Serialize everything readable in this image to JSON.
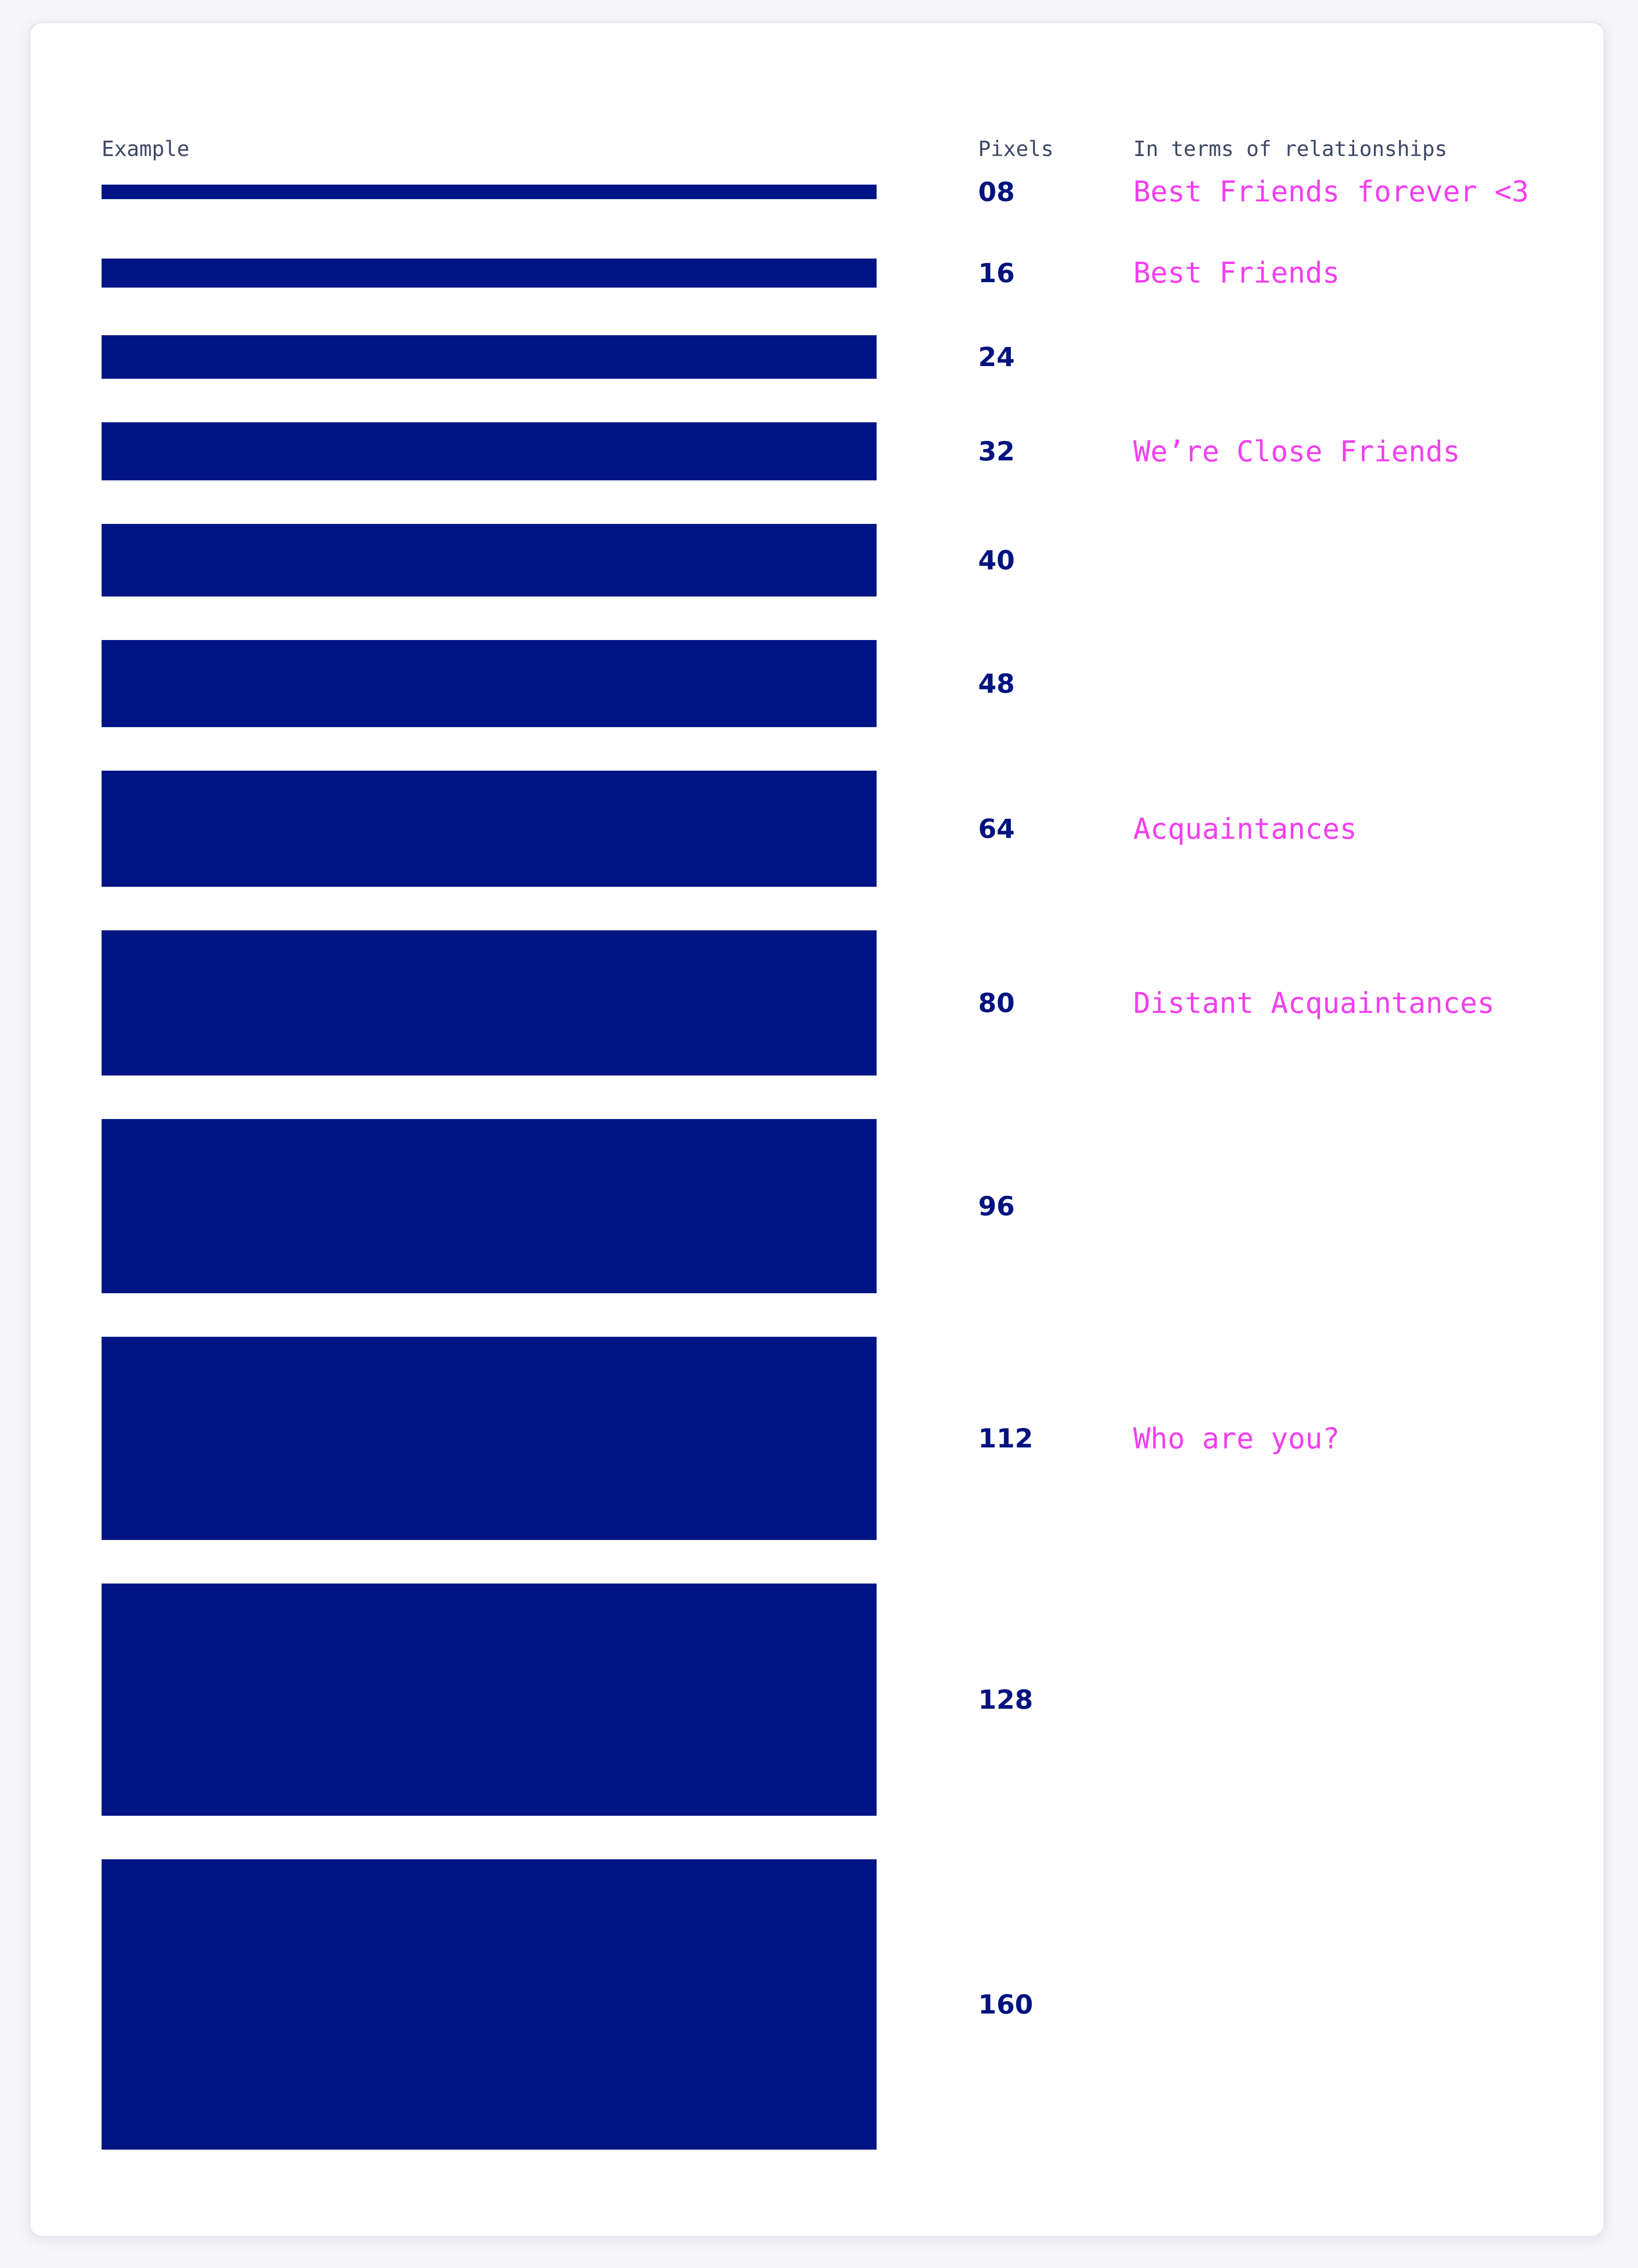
{
  "header": {
    "example": "Example",
    "pixels": "Pixels",
    "relationships": "In terms of relationships"
  },
  "colors": {
    "bar": "#001486",
    "number": "#00137f",
    "relationship": "#f23ff0",
    "header": "#3e4766"
  },
  "rows": [
    {
      "pixels": "08",
      "value": 8,
      "relationship": "Best Friends forever <3"
    },
    {
      "pixels": "16",
      "value": 16,
      "relationship": "Best Friends"
    },
    {
      "pixels": "24",
      "value": 24,
      "relationship": ""
    },
    {
      "pixels": "32",
      "value": 32,
      "relationship": "We’re Close Friends"
    },
    {
      "pixels": "40",
      "value": 40,
      "relationship": ""
    },
    {
      "pixels": "48",
      "value": 48,
      "relationship": ""
    },
    {
      "pixels": "64",
      "value": 64,
      "relationship": "Acquaintances"
    },
    {
      "pixels": "80",
      "value": 80,
      "relationship": "Distant Acquaintances"
    },
    {
      "pixels": "96",
      "value": 96,
      "relationship": ""
    },
    {
      "pixels": "112",
      "value": 112,
      "relationship": "Who are you?"
    },
    {
      "pixels": "128",
      "value": 128,
      "relationship": ""
    },
    {
      "pixels": "160",
      "value": 160,
      "relationship": ""
    }
  ]
}
